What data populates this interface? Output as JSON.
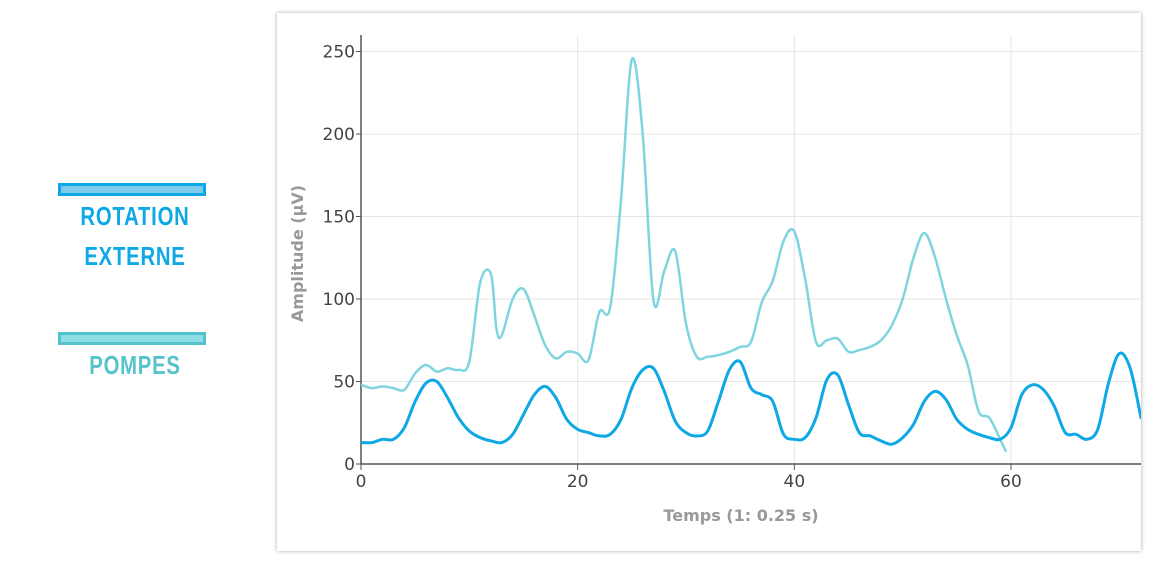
{
  "legend": {
    "items": [
      {
        "lines": [
          "ROTATION",
          "EXTERNE"
        ],
        "swatch_fill": "#7dcbe8",
        "border_color": "#0ea8e6",
        "text_color": "#0ea8e6"
      },
      {
        "lines": [
          "POMPES"
        ],
        "swatch_fill": "#8edde5",
        "border_color": "#55c3cc",
        "text_color": "#55c3cc"
      }
    ]
  },
  "chart_data": {
    "type": "line",
    "title": "",
    "xlabel": "Temps  (1: 0.25 s)",
    "ylabel": "Amplitude (µV)",
    "xlim": [
      0,
      72
    ],
    "ylim": [
      0,
      260
    ],
    "x_ticks": [
      0,
      20,
      40,
      60
    ],
    "y_ticks": [
      0,
      50,
      100,
      150,
      200,
      250
    ],
    "grid": true,
    "series": [
      {
        "color": "#0ea8e6",
        "x": [
          0,
          1,
          2,
          3,
          4,
          5,
          6,
          7,
          8,
          9,
          10,
          11,
          12,
          13,
          14,
          15,
          16,
          17,
          18,
          19,
          20,
          21,
          22,
          23,
          24,
          25,
          26,
          27,
          28,
          29,
          30,
          31,
          32,
          33,
          34,
          35,
          36,
          37,
          38,
          39,
          40,
          41,
          42,
          43,
          44,
          45,
          46,
          47,
          48,
          49,
          50,
          51,
          52,
          53,
          54,
          55,
          56,
          57,
          58,
          59,
          60,
          61,
          62,
          63,
          64,
          65,
          66,
          67,
          68,
          69,
          70,
          71,
          72
        ],
        "values": [
          13,
          13,
          15,
          15,
          22,
          38,
          49,
          50,
          40,
          28,
          20,
          16,
          14,
          13,
          18,
          30,
          42,
          47,
          40,
          27,
          21,
          19,
          17,
          18,
          27,
          46,
          57,
          58,
          44,
          26,
          19,
          17,
          20,
          38,
          57,
          62,
          46,
          42,
          38,
          18,
          15,
          16,
          28,
          51,
          54,
          36,
          19,
          17,
          14,
          12,
          16,
          24,
          38,
          44,
          39,
          27,
          21,
          18,
          16,
          15,
          22,
          42,
          48,
          45,
          35,
          19,
          18,
          15,
          21,
          49,
          67,
          58,
          28
        ]
      },
      {
        "color": "#7fd5df",
        "x": [
          0,
          1,
          2,
          3,
          4,
          5,
          6,
          7,
          8,
          9,
          10,
          11,
          12,
          12.5,
          13,
          14,
          15,
          16,
          17,
          18,
          19,
          20,
          21,
          22,
          23,
          24,
          25,
          26,
          27,
          28,
          29,
          30,
          31,
          32,
          33,
          34,
          35,
          36,
          37,
          38,
          39,
          40,
          41,
          42,
          43,
          44,
          45,
          46,
          47,
          48,
          49,
          50,
          51,
          52,
          53,
          54,
          55,
          56,
          57,
          58,
          59,
          59.5
        ],
        "values": [
          48,
          46,
          47,
          46,
          45,
          55,
          60,
          56,
          58,
          57,
          62,
          110,
          115,
          82,
          78,
          100,
          106,
          90,
          72,
          64,
          68,
          67,
          63,
          92,
          95,
          160,
          245,
          200,
          99,
          117,
          129,
          85,
          65,
          65,
          66,
          68,
          71,
          74,
          98,
          111,
          135,
          141,
          112,
          74,
          75,
          76,
          68,
          69,
          71,
          75,
          84,
          100,
          125,
          140,
          125,
          100,
          78,
          60,
          32,
          28,
          15,
          8
        ]
      }
    ]
  }
}
